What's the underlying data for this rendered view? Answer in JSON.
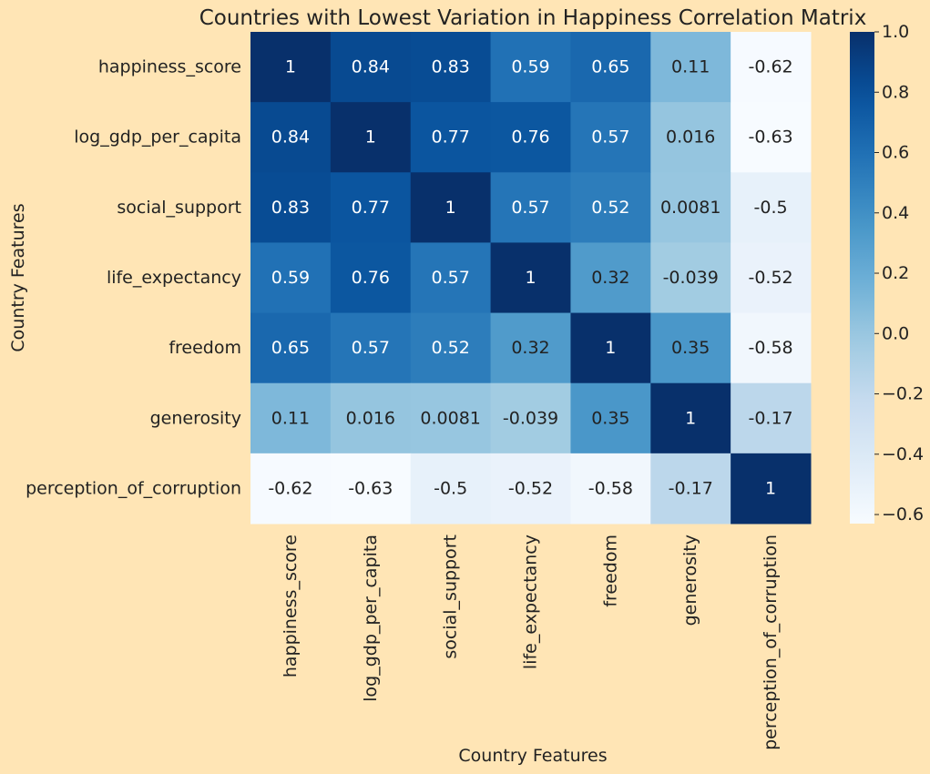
{
  "chart_data": {
    "type": "heatmap",
    "title": "Countries with Lowest Variation in Happiness Correlation Matrix",
    "xlabel": "Country Features",
    "ylabel": "Country Features",
    "rows": [
      "happiness_score",
      "log_gdp_per_capita",
      "social_support",
      "life_expectancy",
      "freedom",
      "generosity",
      "perception_of_corruption"
    ],
    "columns": [
      "happiness_score",
      "log_gdp_per_capita",
      "social_support",
      "life_expectancy",
      "freedom",
      "generosity",
      "perception_of_corruption"
    ],
    "values": [
      [
        1,
        0.84,
        0.83,
        0.59,
        0.65,
        0.11,
        -0.62
      ],
      [
        0.84,
        1,
        0.77,
        0.76,
        0.57,
        0.016,
        -0.63
      ],
      [
        0.83,
        0.77,
        1,
        0.57,
        0.52,
        0.0081,
        -0.5
      ],
      [
        0.59,
        0.76,
        0.57,
        1,
        0.32,
        -0.039,
        -0.52
      ],
      [
        0.65,
        0.57,
        0.52,
        0.32,
        1,
        0.35,
        -0.58
      ],
      [
        0.11,
        0.016,
        0.0081,
        -0.039,
        0.35,
        1,
        -0.17
      ],
      [
        -0.62,
        -0.63,
        -0.5,
        -0.52,
        -0.58,
        -0.17,
        1
      ]
    ],
    "value_labels": [
      [
        "1",
        "0.84",
        "0.83",
        "0.59",
        "0.65",
        "0.11",
        "-0.62"
      ],
      [
        "0.84",
        "1",
        "0.77",
        "0.76",
        "0.57",
        "0.016",
        "-0.63"
      ],
      [
        "0.83",
        "0.77",
        "1",
        "0.57",
        "0.52",
        "0.0081",
        "-0.5"
      ],
      [
        "0.59",
        "0.76",
        "0.57",
        "1",
        "0.32",
        "-0.039",
        "-0.52"
      ],
      [
        "0.65",
        "0.57",
        "0.52",
        "0.32",
        "1",
        "0.35",
        "-0.58"
      ],
      [
        "0.11",
        "0.016",
        "0.0081",
        "-0.039",
        "0.35",
        "1",
        "-0.17"
      ],
      [
        "-0.62",
        "-0.63",
        "-0.5",
        "-0.52",
        "-0.58",
        "-0.17",
        "1"
      ]
    ],
    "colormap": "Blues",
    "vmin": -0.63,
    "vmax": 1.0,
    "colorbar": {
      "ticks": [
        1.0,
        0.8,
        0.6,
        0.4,
        0.2,
        0.0,
        -0.2,
        -0.4,
        -0.6
      ],
      "tick_labels": [
        "1.0",
        "0.8",
        "0.6",
        "0.4",
        "0.2",
        "0.0",
        "−0.2",
        "−0.4",
        "−0.6"
      ],
      "placement": "right"
    },
    "grid": false
  },
  "colors": {
    "background": "#FFE5B5",
    "text": "#222222",
    "dark_text": "#222222",
    "light_text": "#ffffff"
  }
}
